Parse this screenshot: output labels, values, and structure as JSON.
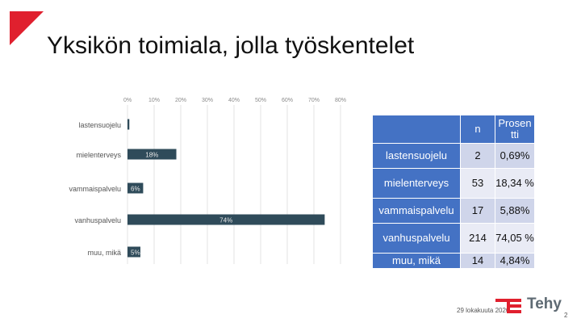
{
  "slide": {
    "title": "Yksikön toimiala, jolla työskentelet",
    "date": "29 lokakuuta 2020",
    "page_number": "2",
    "logo_text": "Tehy"
  },
  "colors": {
    "bar": "#2f4b5a",
    "accent_red": "#e0202e",
    "table_header": "#4472c4",
    "table_row_odd": "#cfd5ea",
    "table_row_even": "#e9ebf5"
  },
  "chart_data": [
    {
      "type": "bar",
      "orientation": "horizontal",
      "categories": [
        "lastensuojelu",
        "mielenterveys",
        "vammaispalvelu",
        "vanhuspalvelu",
        "muu, mikä"
      ],
      "values": [
        0.69,
        18.34,
        5.88,
        74.05,
        4.84
      ],
      "data_labels": [
        "",
        "18%",
        "6%",
        "74%",
        "5%"
      ],
      "x_ticks": [
        "0%",
        "10%",
        "20%",
        "30%",
        "40%",
        "50%",
        "60%",
        "70%",
        "80%"
      ],
      "xlim": [
        0,
        80
      ],
      "grid": true
    },
    {
      "type": "table",
      "columns": [
        "",
        "n",
        "Prosen tti"
      ],
      "rows": [
        {
          "label": "lastensuojelu",
          "n": "2",
          "percent": "0,69%"
        },
        {
          "label": "mielenterveys",
          "n": "53",
          "percent": "18,34 %"
        },
        {
          "label": "vammaispalvelu",
          "n": "17",
          "percent": "5,88%"
        },
        {
          "label": "vanhuspalvelu",
          "n": "214",
          "percent": "74,05 %"
        },
        {
          "label": "muu, mikä",
          "n": "14",
          "percent": "4,84%"
        }
      ]
    }
  ]
}
